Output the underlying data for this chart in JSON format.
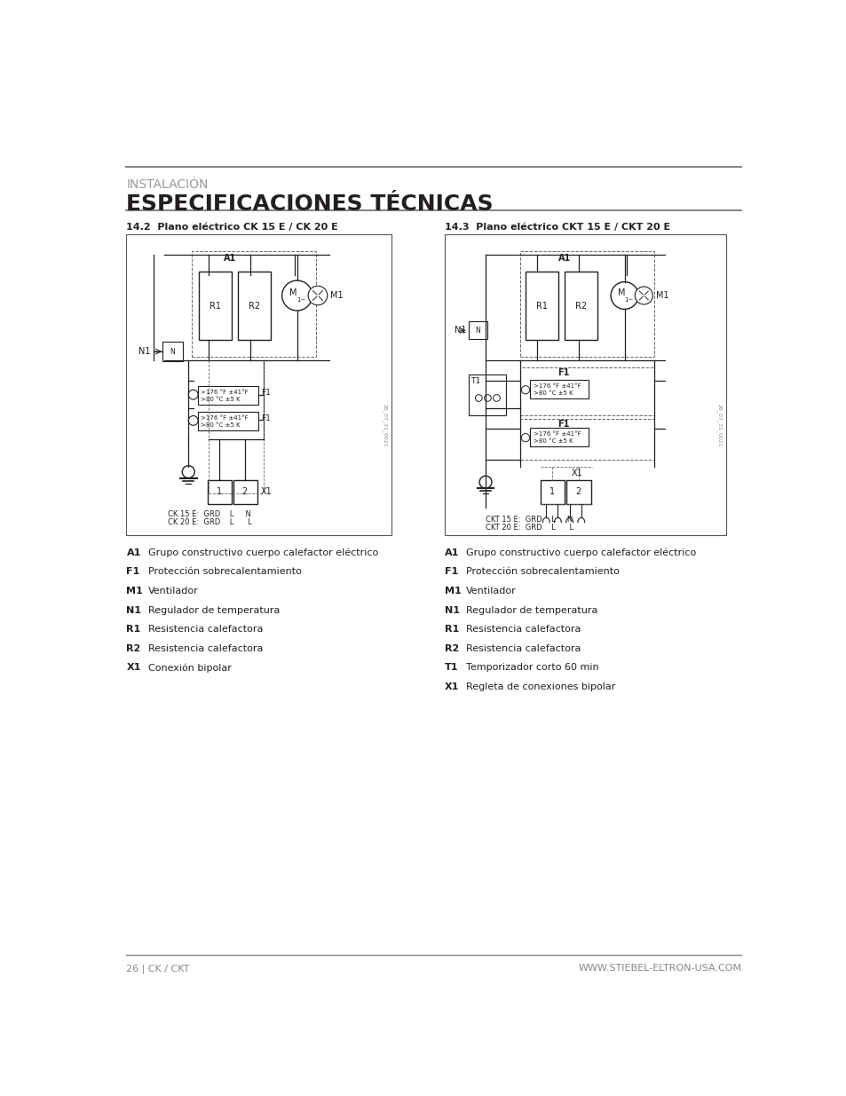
{
  "title_top": "INSTALACIÓN",
  "title_main": "ESPECIFICACIONES TÉCNICAS",
  "section_left_title": "14.2  Plano eléctrico CK 15 E / CK 20 E",
  "section_right_title": "14.3  Plano eléctrico CKT 15 E / CKT 20 E",
  "legend_left": [
    [
      "A1",
      "Grupo constructivo cuerpo calefactor eléctrico"
    ],
    [
      "F1",
      "Protección sobrecalentamiento"
    ],
    [
      "M1",
      "Ventilador"
    ],
    [
      "N1",
      "Regulador de temperatura"
    ],
    [
      "R1",
      "Resistencia calefactora"
    ],
    [
      "R2",
      "Resistencia calefactora"
    ],
    [
      "X1",
      "Conexión bipolar"
    ]
  ],
  "legend_right": [
    [
      "A1",
      "Grupo constructivo cuerpo calefactor eléctrico"
    ],
    [
      "F1",
      "Protección sobrecalentamiento"
    ],
    [
      "M1",
      "Ventilador"
    ],
    [
      "N1",
      "Regulador de temperatura"
    ],
    [
      "R1",
      "Resistencia calefactora"
    ],
    [
      "R2",
      "Resistencia calefactora"
    ],
    [
      "T1",
      "Temporizador corto 60 min"
    ],
    [
      "X1",
      "Regleta de conexiones bipolar"
    ]
  ],
  "footer_left": "26 | CK / CKT",
  "footer_right": "WWW.STIEBEL-ELTRON-USA.COM",
  "bg_color": "#ffffff",
  "text_color": "#231f20",
  "gray_color": "#808080",
  "light_gray": "#aaaaaa"
}
